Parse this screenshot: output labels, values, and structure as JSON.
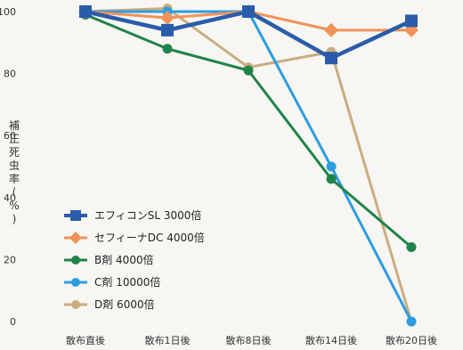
{
  "chart_data": {
    "type": "line",
    "ylabel": "補正死虫率(%)",
    "categories": [
      "散布直後",
      "散布1日後",
      "散布8日後",
      "散布14日後",
      "散布20日後"
    ],
    "yticks": [
      "0",
      "20",
      "40",
      "60",
      "80",
      "100"
    ],
    "ylim": [
      0,
      100
    ],
    "grid": false,
    "legend_position": "bottom-left",
    "series": [
      {
        "name": "エフィコンSL 3000倍",
        "values": [
          100,
          94,
          100,
          85,
          97
        ],
        "color": "#2a5caa",
        "marker": "square"
      },
      {
        "name": "セフィーナDC 4000倍",
        "values": [
          100,
          98,
          100,
          94,
          94
        ],
        "color": "#f0935a",
        "marker": "diamond"
      },
      {
        "name": "B剤 4000倍",
        "values": [
          99,
          88,
          81,
          46,
          24
        ],
        "color": "#21834a",
        "marker": "circle"
      },
      {
        "name": "C剤 10000倍",
        "values": [
          100,
          100,
          100,
          50,
          0
        ],
        "color": "#2e9de0",
        "marker": "circle"
      },
      {
        "name": "D剤 6000倍",
        "values": [
          100,
          101,
          82,
          87,
          0
        ],
        "color": "#c9ad80",
        "marker": "circle"
      }
    ]
  }
}
